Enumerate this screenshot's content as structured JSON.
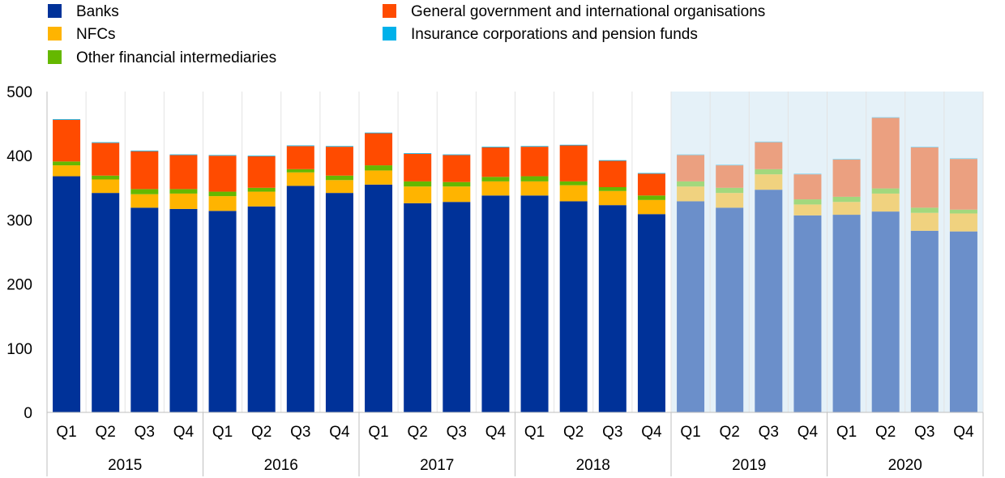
{
  "chart_data": {
    "type": "bar",
    "stacked": true,
    "title": "",
    "xlabel": "",
    "ylabel": "",
    "ylim": [
      0,
      500
    ],
    "yticks": [
      0,
      100,
      200,
      300,
      400,
      500
    ],
    "grid": false,
    "legend_position": "top",
    "categories": [
      "Q1",
      "Q2",
      "Q3",
      "Q4",
      "Q1",
      "Q2",
      "Q3",
      "Q4",
      "Q1",
      "Q2",
      "Q3",
      "Q4",
      "Q1",
      "Q2",
      "Q3",
      "Q4",
      "Q1",
      "Q2",
      "Q3",
      "Q4",
      "Q1",
      "Q2",
      "Q3",
      "Q4"
    ],
    "years": [
      "2015",
      "2016",
      "2017",
      "2018",
      "2019",
      "2020"
    ],
    "shaded_years": [
      "2019",
      "2020"
    ],
    "shaded_background": "#e5f1f8",
    "series": [
      {
        "name": "Banks",
        "color": "#003299",
        "faded_color": "#6b8fca",
        "values": [
          368,
          342,
          319,
          317,
          314,
          321,
          353,
          342,
          355,
          326,
          328,
          338,
          338,
          329,
          323,
          309,
          329,
          319,
          347,
          307,
          308,
          313,
          283,
          282
        ]
      },
      {
        "name": "NFCs",
        "color": "#ffb400",
        "faded_color": "#f0d27f",
        "values": [
          17,
          21,
          21,
          24,
          23,
          23,
          21,
          20,
          22,
          26,
          24,
          22,
          22,
          25,
          22,
          22,
          23,
          23,
          24,
          17,
          20,
          28,
          28,
          28
        ]
      },
      {
        "name": "Other financial intermediaries",
        "color": "#65b800",
        "faded_color": "#a2d87d",
        "values": [
          6,
          6,
          8,
          7,
          7,
          6,
          5,
          7,
          8,
          8,
          7,
          7,
          8,
          6,
          6,
          7,
          8,
          8,
          8,
          8,
          8,
          8,
          8,
          6
        ]
      },
      {
        "name": "General government and international organisations",
        "color": "#ff4b00",
        "faded_color": "#eba080",
        "values": [
          65,
          51,
          59,
          53,
          56,
          49,
          36,
          45,
          50,
          43,
          42,
          46,
          46,
          56,
          41,
          34,
          41,
          35,
          42,
          39,
          58,
          110,
          94,
          79
        ]
      },
      {
        "name": "Insurance corporations and pension funds",
        "color": "#00b1ea",
        "faded_color": "#7fd3ef",
        "values": [
          1,
          1,
          1,
          1,
          1,
          1,
          1,
          1,
          1,
          1,
          1,
          1,
          1,
          1,
          1,
          1,
          1,
          1,
          1,
          1,
          1,
          1,
          1,
          1
        ]
      }
    ]
  }
}
